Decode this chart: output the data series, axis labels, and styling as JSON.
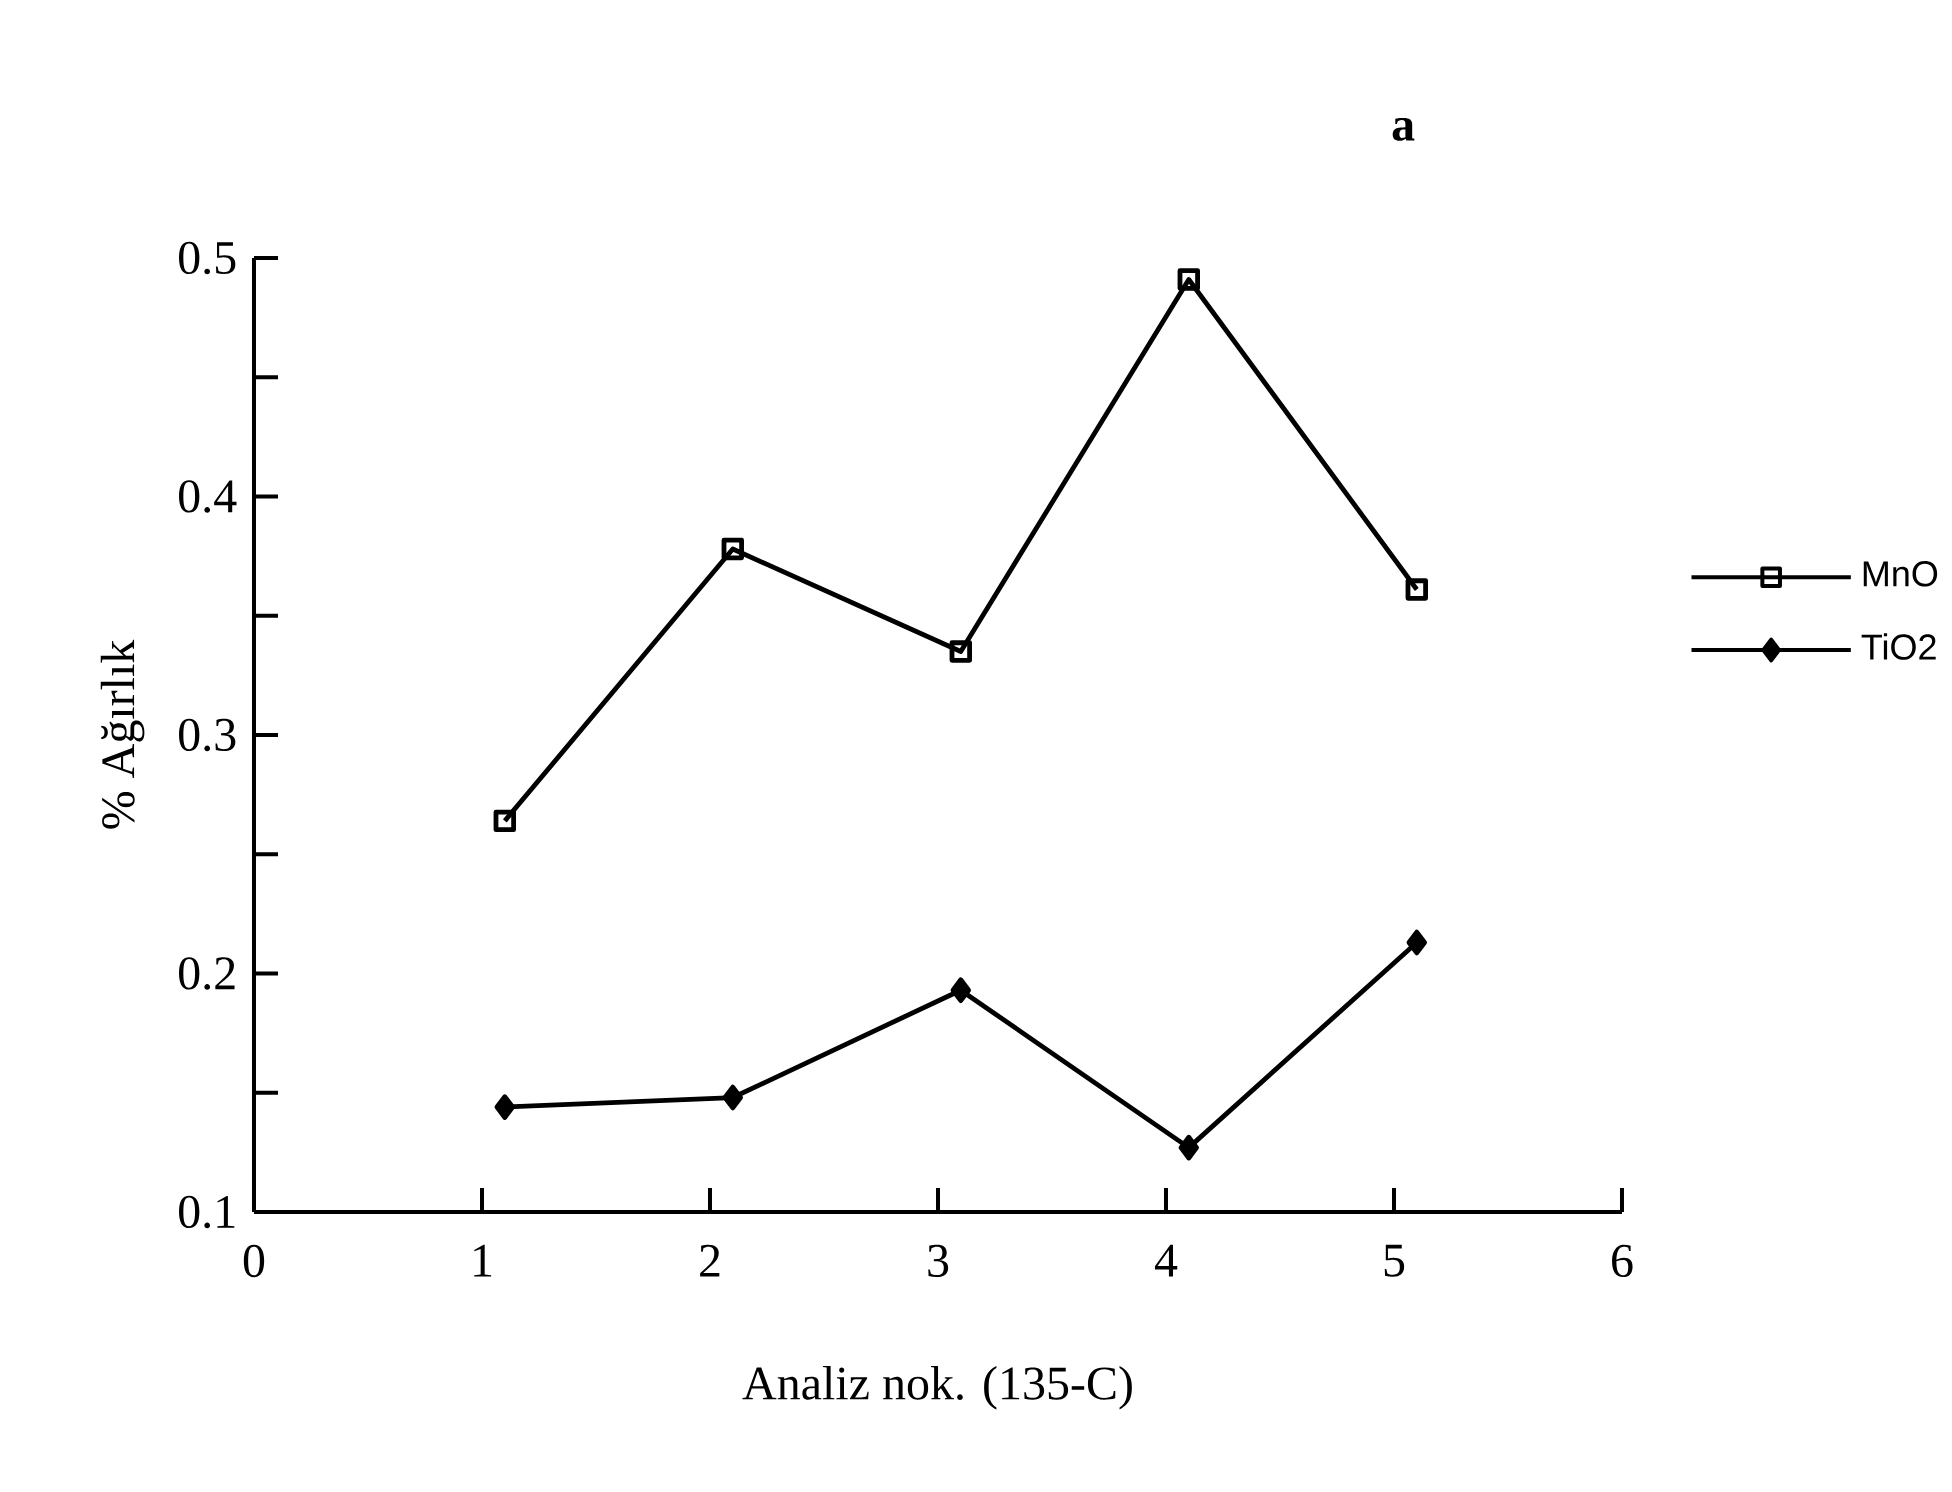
{
  "chart_data": {
    "type": "line",
    "title": "a",
    "xlabel": "Analiz nok. (135-C)",
    "ylabel": "% Ağırlık",
    "x": [
      1.1,
      2.1,
      3.1,
      4.1,
      5.1
    ],
    "series": [
      {
        "name": "MnO",
        "color": "#000000",
        "marker": "square",
        "values": [
          0.264,
          0.378,
          0.335,
          0.491,
          0.361
        ]
      },
      {
        "name": "TiO2",
        "color": "#000000",
        "marker": "diamond",
        "values": [
          0.144,
          0.148,
          0.193,
          0.127,
          0.213
        ]
      }
    ],
    "xlim": [
      0,
      6
    ],
    "xticks": [
      0,
      1,
      2,
      3,
      4,
      5,
      6
    ],
    "ylim": [
      0.1,
      0.5
    ],
    "yticks": [
      0.1,
      {
        "value": 0.15,
        "label": null
      },
      0.2,
      {
        "value": 0.25,
        "label": null
      },
      0.3,
      {
        "value": 0.35,
        "label": null
      },
      0.4,
      {
        "value": 0.45,
        "label": null
      },
      0.5
    ],
    "grid": false,
    "legend": "right",
    "line_style": "solid"
  }
}
